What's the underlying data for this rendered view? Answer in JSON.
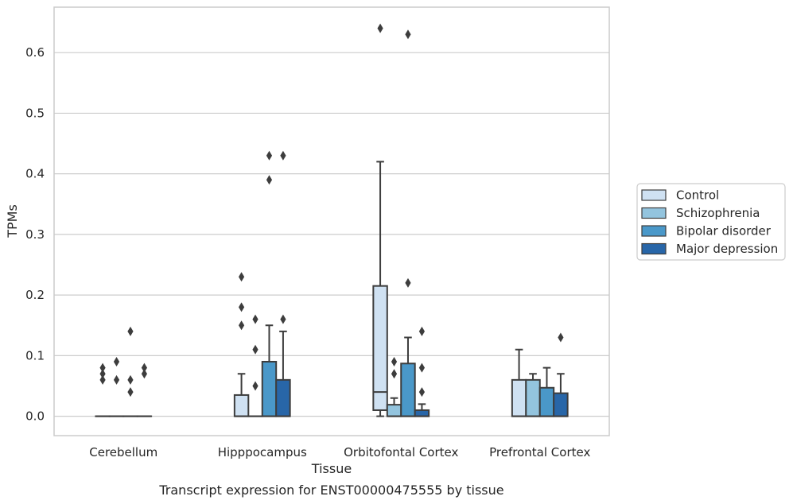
{
  "chart_data": {
    "type": "box",
    "xlabel": "Tissue",
    "ylabel": "TPMs",
    "caption": "Transcript expression for ENST00000475555 by tissue",
    "ylim": [
      -0.032,
      0.675
    ],
    "yticks": [
      "0.0",
      "0.1",
      "0.2",
      "0.3",
      "0.4",
      "0.5",
      "0.6"
    ],
    "grid": "horizontal",
    "legend_position": "right",
    "categories": [
      "Cerebellum",
      "Hipppocampus",
      "Orbitofontal Cortex",
      "Prefrontal Cortex"
    ],
    "series": [
      {
        "name": "Control",
        "color": "#cfe1f2",
        "boxes": [
          {
            "q1": 0.0,
            "median": 0.0,
            "q3": 0.0,
            "whisker_low": 0.0,
            "whisker_high": 0.0,
            "outliers": [
              0.06,
              0.07,
              0.08
            ]
          },
          {
            "q1": 0.0,
            "median": 0.0,
            "q3": 0.035,
            "whisker_low": 0.0,
            "whisker_high": 0.07,
            "outliers": [
              0.15,
              0.18,
              0.23
            ]
          },
          {
            "q1": 0.01,
            "median": 0.04,
            "q3": 0.215,
            "whisker_low": 0.0,
            "whisker_high": 0.42,
            "outliers": [
              0.64
            ]
          },
          {
            "q1": 0.0,
            "median": 0.0,
            "q3": 0.06,
            "whisker_low": 0.0,
            "whisker_high": 0.11,
            "outliers": []
          }
        ]
      },
      {
        "name": "Schizophrenia",
        "color": "#93c4de",
        "boxes": [
          {
            "q1": 0.0,
            "median": 0.0,
            "q3": 0.0,
            "whisker_low": 0.0,
            "whisker_high": 0.0,
            "outliers": [
              0.06,
              0.09
            ]
          },
          {
            "q1": 0.0,
            "median": 0.0,
            "q3": 0.0,
            "whisker_low": 0.0,
            "whisker_high": 0.0,
            "outliers": [
              0.05,
              0.11,
              0.16
            ]
          },
          {
            "q1": 0.0,
            "median": 0.0,
            "q3": 0.019,
            "whisker_low": 0.0,
            "whisker_high": 0.03,
            "outliers": [
              0.07,
              0.09
            ]
          },
          {
            "q1": 0.0,
            "median": 0.0,
            "q3": 0.06,
            "whisker_low": 0.0,
            "whisker_high": 0.07,
            "outliers": []
          }
        ]
      },
      {
        "name": "Bipolar disorder",
        "color": "#4a98c9",
        "boxes": [
          {
            "q1": 0.0,
            "median": 0.0,
            "q3": 0.0,
            "whisker_low": 0.0,
            "whisker_high": 0.0,
            "outliers": [
              0.04,
              0.06,
              0.14
            ]
          },
          {
            "q1": 0.0,
            "median": 0.0,
            "q3": 0.09,
            "whisker_low": 0.0,
            "whisker_high": 0.15,
            "outliers": [
              0.39,
              0.43
            ]
          },
          {
            "q1": 0.0,
            "median": 0.0,
            "q3": 0.087,
            "whisker_low": 0.0,
            "whisker_high": 0.13,
            "outliers": [
              0.22,
              0.63
            ]
          },
          {
            "q1": 0.0,
            "median": 0.0,
            "q3": 0.047,
            "whisker_low": 0.0,
            "whisker_high": 0.08,
            "outliers": []
          }
        ]
      },
      {
        "name": "Major depression",
        "color": "#2866a8",
        "boxes": [
          {
            "q1": 0.0,
            "median": 0.0,
            "q3": 0.0,
            "whisker_low": 0.0,
            "whisker_high": 0.0,
            "outliers": [
              0.07,
              0.08
            ]
          },
          {
            "q1": 0.0,
            "median": 0.0,
            "q3": 0.06,
            "whisker_low": 0.0,
            "whisker_high": 0.14,
            "outliers": [
              0.16,
              0.43
            ]
          },
          {
            "q1": 0.0,
            "median": 0.0,
            "q3": 0.01,
            "whisker_low": 0.0,
            "whisker_high": 0.02,
            "outliers": [
              0.04,
              0.08,
              0.14
            ]
          },
          {
            "q1": 0.0,
            "median": 0.0,
            "q3": 0.038,
            "whisker_low": 0.0,
            "whisker_high": 0.07,
            "outliers": [
              0.13
            ]
          }
        ]
      }
    ]
  }
}
